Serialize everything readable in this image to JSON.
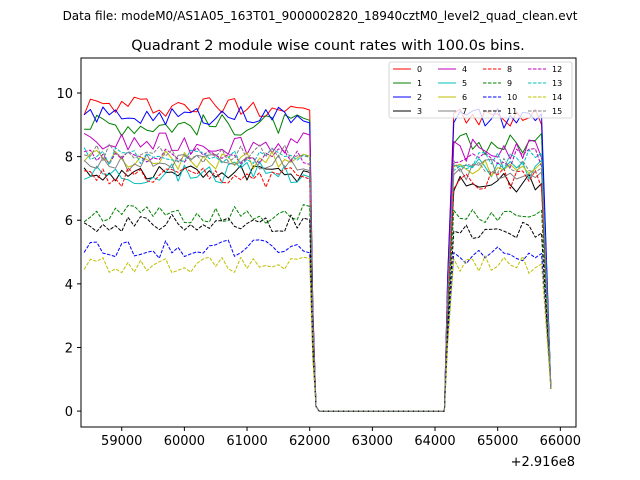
{
  "chart_data": {
    "type": "line",
    "suptitle": "Data file: modeM0/AS1A05_163T01_9000002820_18940cztM0_level2_quad_clean.evt",
    "title": "Quadrant 2 module wise count rates with 100.0s bins.",
    "xlabel": "",
    "ylabel": "",
    "x_offset_label": "+2.916e8",
    "x_range": [
      58400,
      65850
    ],
    "xlim": [
      58350,
      66250
    ],
    "ylim": [
      -0.5,
      11.1
    ],
    "xticks": [
      59000,
      60000,
      61000,
      62000,
      63000,
      64000,
      65000,
      66000
    ],
    "xtick_labels": [
      "59000",
      "60000",
      "61000",
      "62000",
      "63000",
      "64000",
      "65000",
      "66000"
    ],
    "yticks": [
      0,
      2,
      4,
      6,
      8,
      10
    ],
    "ytick_labels": [
      "0",
      "2",
      "4",
      "6",
      "8",
      "10"
    ],
    "gap": {
      "drop_start": 62000,
      "zero_start": 62150,
      "zero_end": 64150,
      "rise_end": 64300
    },
    "legend_location": "top-right",
    "legend_columns": 4,
    "series": [
      {
        "name": "0",
        "color": "#ff0000",
        "dash": "solid",
        "level1": 9.6,
        "noise1": 0.35,
        "level2": 9.2,
        "noise2": 0.35,
        "end": 0.7
      },
      {
        "name": "1",
        "color": "#008000",
        "dash": "solid",
        "level1": 9.0,
        "noise1": 0.35,
        "level2": 8.4,
        "noise2": 0.35,
        "end": 0.7
      },
      {
        "name": "2",
        "color": "#0000ff",
        "dash": "solid",
        "level1": 9.3,
        "noise1": 0.3,
        "level2": 9.2,
        "noise2": 0.35,
        "end": 0.7
      },
      {
        "name": "3",
        "color": "#000000",
        "dash": "solid",
        "level1": 7.5,
        "noise1": 0.3,
        "level2": 7.2,
        "noise2": 0.35,
        "end": 0.7
      },
      {
        "name": "4",
        "color": "#bf00bf",
        "dash": "solid",
        "level1": 8.4,
        "noise1": 0.35,
        "level2": 8.2,
        "noise2": 0.35,
        "end": 0.7
      },
      {
        "name": "5",
        "color": "#00bfbf",
        "dash": "solid",
        "level1": 7.5,
        "noise1": 0.35,
        "level2": 7.6,
        "noise2": 0.35,
        "end": 0.7
      },
      {
        "name": "6",
        "color": "#bfbf00",
        "dash": "solid",
        "level1": 7.9,
        "noise1": 0.3,
        "level2": 7.7,
        "noise2": 0.35,
        "end": 0.7
      },
      {
        "name": "7",
        "color": "#808080",
        "dash": "solid",
        "level1": 7.8,
        "noise1": 0.3,
        "level2": 7.6,
        "noise2": 0.35,
        "end": 0.7
      },
      {
        "name": "8",
        "color": "#ff0000",
        "dash": "dashed",
        "level1": 7.3,
        "noise1": 0.35,
        "level2": 7.3,
        "noise2": 0.35,
        "end": 0.7
      },
      {
        "name": "9",
        "color": "#008000",
        "dash": "dashed",
        "level1": 6.2,
        "noise1": 0.3,
        "level2": 6.1,
        "noise2": 0.3,
        "end": 0.7
      },
      {
        "name": "10",
        "color": "#0000ff",
        "dash": "dashed",
        "level1": 5.1,
        "noise1": 0.3,
        "level2": 4.9,
        "noise2": 0.3,
        "end": 0.7
      },
      {
        "name": "11",
        "color": "#000000",
        "dash": "dashed",
        "level1": 5.9,
        "noise1": 0.3,
        "level2": 5.7,
        "noise2": 0.3,
        "end": 0.7
      },
      {
        "name": "12",
        "color": "#bf00bf",
        "dash": "dashed",
        "level1": 8.0,
        "noise1": 0.3,
        "level2": 8.0,
        "noise2": 0.35,
        "end": 0.7
      },
      {
        "name": "13",
        "color": "#00bfbf",
        "dash": "dashed",
        "level1": 8.0,
        "noise1": 0.3,
        "level2": 7.9,
        "noise2": 0.35,
        "end": 0.7
      },
      {
        "name": "14",
        "color": "#bfbf00",
        "dash": "dashed",
        "level1": 4.6,
        "noise1": 0.25,
        "level2": 4.6,
        "noise2": 0.3,
        "end": 0.7
      },
      {
        "name": "15",
        "color": "#808080",
        "dash": "dashed",
        "level1": 8.1,
        "noise1": 0.3,
        "level2": 7.8,
        "noise2": 0.35,
        "end": 0.7
      }
    ]
  }
}
